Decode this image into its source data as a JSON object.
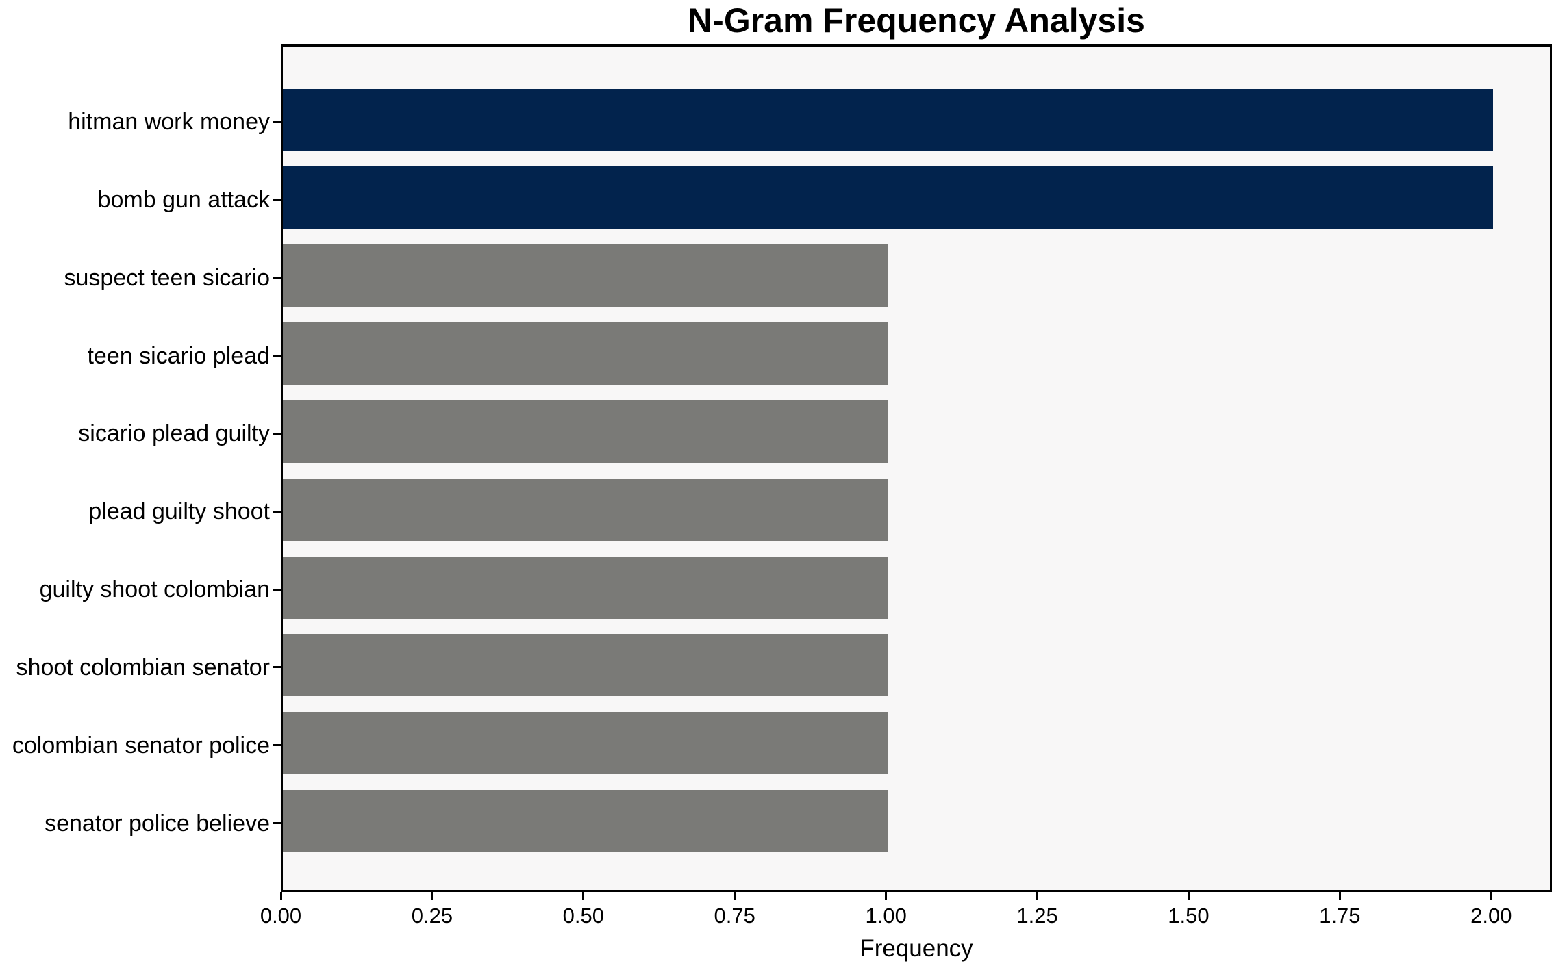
{
  "chart_data": {
    "type": "bar",
    "orientation": "horizontal",
    "title": "N-Gram Frequency Analysis",
    "xlabel": "Frequency",
    "ylabel": "",
    "categories": [
      "hitman work money",
      "bomb gun attack",
      "suspect teen sicario",
      "teen sicario plead",
      "sicario plead guilty",
      "plead guilty shoot",
      "guilty shoot colombian",
      "shoot colombian senator",
      "colombian senator police",
      "senator police believe"
    ],
    "values": [
      2,
      2,
      1,
      1,
      1,
      1,
      1,
      1,
      1,
      1
    ],
    "bar_colors": [
      "#02234d",
      "#02234d",
      "#7a7a77",
      "#7a7a77",
      "#7a7a77",
      "#7a7a77",
      "#7a7a77",
      "#7a7a77",
      "#7a7a77",
      "#7a7a77"
    ],
    "xlim": [
      0,
      2.1
    ],
    "x_ticks": [
      {
        "value": 0.0,
        "label": "0.00"
      },
      {
        "value": 0.25,
        "label": "0.25"
      },
      {
        "value": 0.5,
        "label": "0.50"
      },
      {
        "value": 0.75,
        "label": "0.75"
      },
      {
        "value": 1.0,
        "label": "1.00"
      },
      {
        "value": 1.25,
        "label": "1.25"
      },
      {
        "value": 1.5,
        "label": "1.50"
      },
      {
        "value": 1.75,
        "label": "1.75"
      },
      {
        "value": 2.0,
        "label": "2.00"
      }
    ],
    "grid": false,
    "legend": false,
    "plot_background": "#f8f7f7",
    "figure_background": "#ffffff",
    "spine_color": "#000000",
    "text_color": "#000000"
  }
}
